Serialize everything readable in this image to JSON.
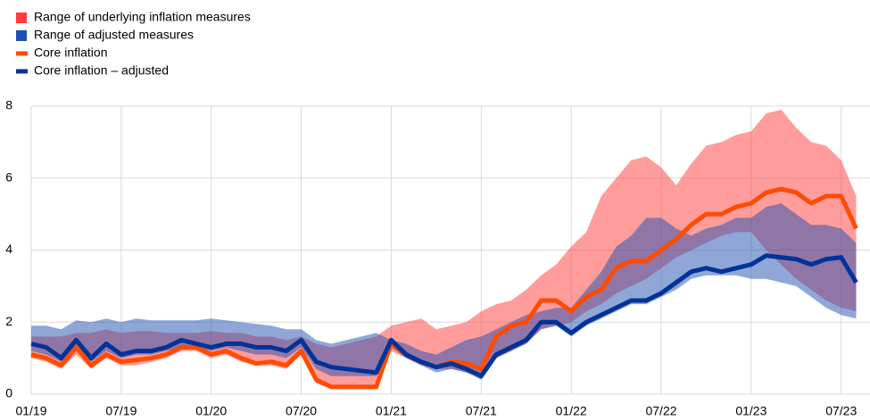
{
  "chart_data": {
    "type": "range-line",
    "categories": [
      "01/19",
      null,
      null,
      null,
      null,
      null,
      "07/19",
      null,
      null,
      null,
      null,
      null,
      "01/20",
      null,
      null,
      null,
      null,
      null,
      "07/20",
      null,
      null,
      null,
      null,
      null,
      "01/21",
      null,
      null,
      null,
      null,
      null,
      "07/21",
      null,
      null,
      null,
      null,
      null,
      "01/22",
      null,
      null,
      null,
      null,
      null,
      "07/22",
      null,
      null,
      null,
      null,
      null,
      "01/23",
      null,
      null,
      null,
      null,
      null,
      "07/23",
      null
    ],
    "ylim": [
      0,
      8
    ],
    "yticks": [
      0,
      2,
      4,
      6,
      8
    ],
    "grid": true,
    "series": [
      {
        "name": "Range of underlying inflation measures",
        "kind": "range",
        "color": "#ff3c3c",
        "low": [
          1.0,
          0.9,
          0.7,
          1.1,
          0.7,
          1.0,
          0.8,
          0.8,
          0.9,
          1.0,
          1.2,
          1.2,
          1.0,
          1.1,
          0.9,
          0.8,
          0.8,
          0.7,
          1.1,
          0.3,
          0.15,
          0.15,
          0.15,
          0.15,
          1.2,
          1.0,
          0.8,
          0.7,
          0.7,
          0.6,
          0.5,
          1.0,
          1.2,
          1.4,
          1.8,
          1.9,
          2.0,
          2.3,
          2.5,
          2.8,
          3.0,
          3.2,
          3.5,
          3.8,
          4.0,
          4.2,
          4.4,
          4.5,
          4.5,
          4.0,
          3.6,
          3.2,
          2.9,
          2.6,
          2.4,
          2.3
        ],
        "high": [
          1.6,
          1.6,
          1.6,
          1.7,
          1.7,
          1.8,
          1.7,
          1.75,
          1.75,
          1.7,
          1.7,
          1.7,
          1.75,
          1.7,
          1.7,
          1.6,
          1.6,
          1.5,
          1.6,
          1.4,
          1.3,
          1.4,
          1.5,
          1.6,
          1.9,
          2.0,
          2.1,
          1.8,
          1.9,
          2.0,
          2.3,
          2.5,
          2.6,
          2.9,
          3.3,
          3.6,
          4.1,
          4.5,
          5.5,
          6.0,
          6.5,
          6.6,
          6.3,
          5.8,
          6.4,
          6.9,
          7.0,
          7.2,
          7.3,
          7.8,
          7.9,
          7.4,
          7.0,
          6.9,
          6.5,
          5.5
        ]
      },
      {
        "name": "Range of adjusted measures",
        "kind": "range",
        "color": "#1f4fb0",
        "low": [
          1.2,
          1.1,
          0.9,
          1.3,
          0.9,
          1.2,
          1.0,
          1.1,
          1.1,
          1.2,
          1.3,
          1.3,
          1.2,
          1.3,
          1.2,
          1.1,
          1.1,
          1.0,
          1.3,
          0.7,
          0.5,
          0.5,
          0.5,
          0.5,
          1.3,
          1.0,
          0.8,
          0.6,
          0.7,
          0.6,
          0.4,
          1.0,
          1.2,
          1.4,
          1.8,
          1.9,
          1.6,
          1.9,
          2.1,
          2.3,
          2.5,
          2.5,
          2.7,
          2.9,
          3.2,
          3.3,
          3.3,
          3.3,
          3.2,
          3.2,
          3.1,
          3.0,
          2.7,
          2.4,
          2.2,
          2.1
        ],
        "high": [
          1.9,
          1.9,
          1.8,
          2.05,
          2.0,
          2.1,
          2.0,
          2.1,
          2.05,
          2.05,
          2.05,
          2.05,
          2.1,
          2.05,
          2.0,
          1.95,
          1.9,
          1.8,
          1.8,
          1.5,
          1.4,
          1.5,
          1.6,
          1.7,
          1.5,
          1.4,
          1.2,
          1.1,
          1.3,
          1.5,
          1.6,
          1.8,
          2.0,
          2.2,
          2.3,
          2.4,
          2.4,
          2.9,
          3.4,
          4.1,
          4.4,
          4.9,
          4.9,
          4.6,
          4.4,
          4.6,
          4.7,
          4.9,
          4.9,
          5.2,
          5.3,
          5.0,
          4.7,
          4.7,
          4.6,
          4.2
        ]
      },
      {
        "name": "Core inflation",
        "kind": "line",
        "color": "#ff4b00",
        "values": [
          1.1,
          1.0,
          0.8,
          1.3,
          0.8,
          1.1,
          0.9,
          0.95,
          1.0,
          1.1,
          1.3,
          1.3,
          1.1,
          1.2,
          1.0,
          0.85,
          0.9,
          0.8,
          1.2,
          0.4,
          0.2,
          0.2,
          0.2,
          0.2,
          1.4,
          1.1,
          0.9,
          0.75,
          0.9,
          0.85,
          0.7,
          1.6,
          1.9,
          2.0,
          2.6,
          2.6,
          2.3,
          2.7,
          2.9,
          3.5,
          3.7,
          3.7,
          4.0,
          4.3,
          4.7,
          5.0,
          5.0,
          5.2,
          5.3,
          5.6,
          5.7,
          5.6,
          5.3,
          5.5,
          5.5,
          4.6
        ]
      },
      {
        "name": "Core inflation – adjusted",
        "kind": "line",
        "color": "#003299",
        "values": [
          1.4,
          1.3,
          1.0,
          1.5,
          1.0,
          1.4,
          1.1,
          1.2,
          1.2,
          1.3,
          1.5,
          1.4,
          1.3,
          1.4,
          1.4,
          1.3,
          1.3,
          1.2,
          1.5,
          0.9,
          0.75,
          0.7,
          0.65,
          0.6,
          1.5,
          1.1,
          0.9,
          0.75,
          0.85,
          0.7,
          0.5,
          1.1,
          1.3,
          1.5,
          2.0,
          2.0,
          1.7,
          2.0,
          2.2,
          2.4,
          2.6,
          2.6,
          2.8,
          3.1,
          3.4,
          3.5,
          3.4,
          3.5,
          3.6,
          3.85,
          3.8,
          3.75,
          3.6,
          3.75,
          3.8,
          3.1
        ]
      }
    ]
  }
}
